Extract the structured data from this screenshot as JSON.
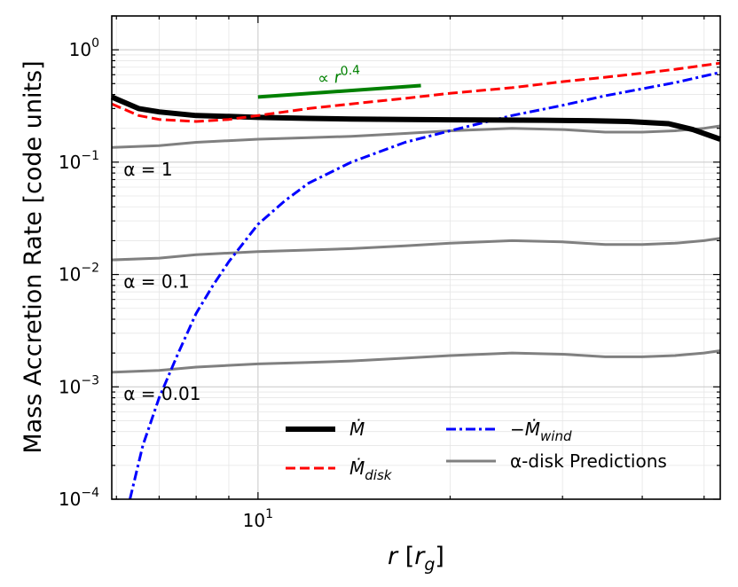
{
  "chart_data": {
    "type": "line",
    "xscale": "log",
    "yscale": "log",
    "xlim": [
      5.9,
      53
    ],
    "ylim": [
      0.0001,
      2
    ],
    "xlabel": "r [r_g]",
    "ylabel": "Mass Accretion Rate [code units]",
    "x_ticks": [
      {
        "value": 10,
        "base": "10",
        "exp": "1"
      }
    ],
    "y_ticks": [
      {
        "value": 0.0001,
        "base": "10",
        "exp": "−4"
      },
      {
        "value": 0.001,
        "base": "10",
        "exp": "−3"
      },
      {
        "value": 0.01,
        "base": "10",
        "exp": "−2"
      },
      {
        "value": 0.1,
        "base": "10",
        "exp": "−1"
      },
      {
        "value": 1,
        "base": "10",
        "exp": "0"
      }
    ],
    "series": [
      {
        "name": "Mdot",
        "label": "Ṁ",
        "color": "#000000",
        "style": "solid",
        "x": [
          5.9,
          6.5,
          7,
          8,
          9,
          10,
          12,
          14,
          17,
          20,
          24,
          28,
          33,
          38,
          44,
          48,
          53
        ],
        "y": [
          0.38,
          0.3,
          0.28,
          0.26,
          0.255,
          0.25,
          0.245,
          0.242,
          0.24,
          0.238,
          0.237,
          0.236,
          0.234,
          0.23,
          0.22,
          0.195,
          0.16
        ]
      },
      {
        "name": "Mdot_disk",
        "label": "Ṁ disk",
        "color": "#ff0000",
        "style": "dashed",
        "x": [
          5.9,
          6.5,
          7,
          8,
          9,
          10,
          11,
          12,
          14,
          17,
          20,
          25,
          30,
          35,
          40,
          45,
          53
        ],
        "y": [
          0.33,
          0.26,
          0.24,
          0.23,
          0.24,
          0.26,
          0.28,
          0.3,
          0.33,
          0.37,
          0.41,
          0.46,
          0.52,
          0.57,
          0.62,
          0.67,
          0.76
        ]
      },
      {
        "name": "minus_Mdot_wind",
        "label": "−Ṁ wind",
        "color": "#0000ff",
        "style": "dashdot",
        "x": [
          6.3,
          6.6,
          7,
          7.5,
          8,
          8.5,
          9,
          10,
          11,
          12,
          14,
          17,
          20,
          25,
          30,
          35,
          40,
          45,
          53
        ],
        "y": [
          0.0001,
          0.0003,
          0.0008,
          0.002,
          0.0045,
          0.008,
          0.013,
          0.028,
          0.045,
          0.065,
          0.1,
          0.15,
          0.19,
          0.26,
          0.32,
          0.39,
          0.45,
          0.51,
          0.63
        ]
      },
      {
        "name": "alpha_disk_1",
        "label": "α-disk Predictions",
        "color": "#808080",
        "style": "solid",
        "x": [
          5.9,
          7,
          8,
          10,
          12,
          14,
          17,
          20,
          25,
          30,
          35,
          40,
          45,
          50,
          53
        ],
        "y": [
          0.135,
          0.14,
          0.15,
          0.16,
          0.165,
          0.17,
          0.18,
          0.19,
          0.2,
          0.195,
          0.185,
          0.185,
          0.19,
          0.2,
          0.21
        ]
      },
      {
        "name": "alpha_disk_0.1",
        "label": "",
        "color": "#808080",
        "style": "solid",
        "x": [
          5.9,
          7,
          8,
          10,
          12,
          14,
          17,
          20,
          25,
          30,
          35,
          40,
          45,
          50,
          53
        ],
        "y": [
          0.0135,
          0.014,
          0.015,
          0.016,
          0.0165,
          0.017,
          0.018,
          0.019,
          0.02,
          0.0195,
          0.0185,
          0.0185,
          0.019,
          0.02,
          0.021
        ]
      },
      {
        "name": "alpha_disk_0.01",
        "label": "",
        "color": "#808080",
        "style": "solid",
        "x": [
          5.9,
          7,
          8,
          10,
          12,
          14,
          17,
          20,
          25,
          30,
          35,
          40,
          45,
          50,
          53
        ],
        "y": [
          0.00135,
          0.0014,
          0.0015,
          0.0016,
          0.00165,
          0.0017,
          0.0018,
          0.0019,
          0.002,
          0.00195,
          0.00185,
          0.00185,
          0.0019,
          0.002,
          0.0021
        ]
      }
    ],
    "slope_line": {
      "label": "∝ r^0.4",
      "exp": "0.4",
      "color": "#008000",
      "x": [
        10,
        18
      ],
      "y": [
        0.38,
        0.48
      ]
    },
    "annotations": [
      {
        "text": "α = 1",
        "x": 6.0,
        "y": 0.085
      },
      {
        "text": "α = 0.1",
        "x": 6.0,
        "y": 0.0085
      },
      {
        "text": "α = 0.01",
        "x": 6.0,
        "y": 0.00085
      }
    ],
    "legend": {
      "position": "lower-right",
      "entries": [
        "Mdot",
        "Mdot_disk",
        "minus_Mdot_wind",
        "alpha_disk_1"
      ]
    },
    "grid": true
  }
}
